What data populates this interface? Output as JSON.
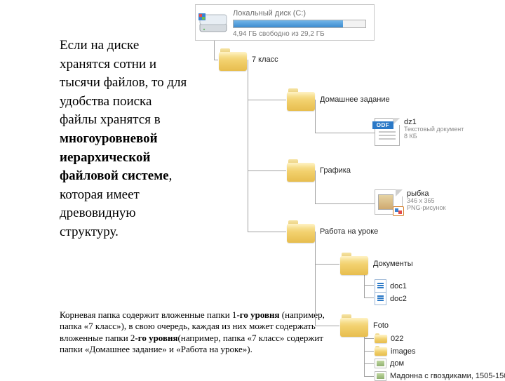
{
  "left_paragraph": {
    "p1": "Если на диске хранятся сотни и тысячи файлов, то для удобства поиска файлы хранятся в ",
    "bold": "многоуровневой иерархической файловой системе",
    "p2": ", которая имеет древовидную структуру."
  },
  "bottom_paragraph": {
    "t1": "Корневая папка содержит вложенные папки 1",
    "b1": "-го уровня ",
    "t2": "(например, папка «7 класс»), в свою очередь, каждая из них может содержать вложенные папки 2",
    "b2": "-го уровня",
    "t3": "(например, папка «7 класс» содержит папки «Домашнее задание» и «Работа на уроке»)."
  },
  "disk": {
    "title": "Локальный диск (С:)",
    "free_text": "4,94 ГБ свободно из 29,2 ГБ",
    "fill_pct": 83
  },
  "odf_badge": "ODF",
  "nodes": {
    "l1_1": "7 класс",
    "l2_1": "Домашнее задание",
    "l3_1_name": "dz1",
    "l3_1_sub1": "Текстовый документ",
    "l3_1_sub2": "8 КБ",
    "l2_2": "Графика",
    "l3_2_name": "рыбка",
    "l3_2_sub1": "346 x 365",
    "l3_2_sub2": "PNG-рисунок",
    "l2_3": "Работа на уроке",
    "l3_3": "Документы",
    "l4_1": "doc1",
    "l4_2": "doc2",
    "l3_4": "Foto",
    "l4_3": "022",
    "l4_4": "images",
    "l4_5": "дом",
    "l4_6": "Мадонна с гвоздиками, 1505-150"
  },
  "style": {
    "folder_color": "#f2d16e",
    "line_color": "#a0a0a0",
    "disk_bar_fill": "#3d8ccf",
    "odf_badge_bg": "#2b79c7"
  }
}
